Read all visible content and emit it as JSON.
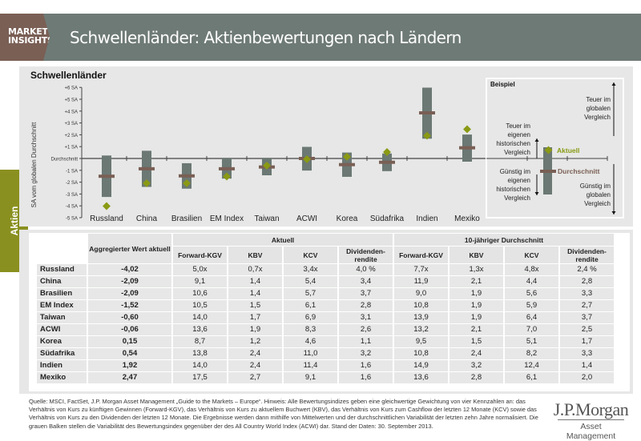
{
  "header": {
    "brand": [
      "MARKET",
      "INSIGHTS"
    ],
    "title": "Schwellenländer: Aktienbewertungen nach Ländern"
  },
  "sidetab": "Aktien",
  "colors": {
    "header": "#6e7a76",
    "brand": "#7a5f55",
    "side": "#8a901f",
    "bar": "#6b7874",
    "average": "#7a5f55",
    "current": "#8a9a14"
  },
  "chart_data": {
    "type": "range-bar",
    "title": "Schwellenländer",
    "ylabel": "SA vom globalen Durchschnitt",
    "ylim": [
      -5,
      6
    ],
    "yticks": [
      "+6 SA",
      "+5 SA",
      "+4 SA",
      "+3 SA",
      "+2 SA",
      "+1 SA",
      "Durchschnitt",
      "-1 SA",
      "-2 SA",
      "-3 SA",
      "-4 SA",
      "-5 SA"
    ],
    "categories": [
      "Russland",
      "China",
      "Brasilien",
      "EM Index",
      "Taiwan",
      "ACWI",
      "Korea",
      "Südafrika",
      "Indien",
      "Mexiko"
    ],
    "range_low": [
      -3.25,
      -2.4,
      -2.55,
      -1.7,
      -1.42,
      -1.02,
      -1.55,
      -1.07,
      1.67,
      -0.27
    ],
    "range_high": [
      0.25,
      0.65,
      -0.4,
      0,
      0,
      0.98,
      0.5,
      0.42,
      5.98,
      2.02
    ],
    "average": [
      -1.5,
      -0.87,
      -1.47,
      -0.87,
      -0.72,
      0,
      -0.52,
      -0.32,
      3.85,
      0.9
    ],
    "current": [
      -4.02,
      -2.09,
      -2.09,
      -1.52,
      -0.6,
      -0.06,
      0.15,
      0.54,
      1.92,
      2.47
    ],
    "grid": false,
    "legend": {
      "title": "Beispiel",
      "current": "Aktuell",
      "average": "Durchschnitt",
      "own_expensive": [
        "Teuer im",
        "eigenen",
        "historischen",
        "Vergleich"
      ],
      "own_cheap": [
        "Günstig im",
        "eigenen",
        "historischen",
        "Vergleich"
      ],
      "global_expensive": [
        "Teuer im",
        "globalen",
        "Vergleich"
      ],
      "global_cheap": [
        "Günstig im",
        "globalen",
        "Vergleich"
      ],
      "placement": "right"
    }
  },
  "table": {
    "group_headers": [
      "Aggregierter Wert aktuell",
      "Aktuell",
      "10-jähriger Durchschnitt"
    ],
    "columns": [
      "Forward-KGV",
      "KBV",
      "KCV",
      "Dividenden-rendite",
      "Forward-KGV",
      "KBV",
      "KCV",
      "Dividenden-rendite"
    ],
    "rows": [
      [
        "Russland",
        "-4,02",
        "5,0x",
        "0,7x",
        "3,4x",
        "4,0 %",
        "7,7x",
        "1,3x",
        "4,8x",
        "2,4 %"
      ],
      [
        "China",
        "-2,09",
        "9,1",
        "1,4",
        "5,4",
        "3,4",
        "11,9",
        "2,1",
        "4,4",
        "2,8"
      ],
      [
        "Brasilien",
        "-2,09",
        "10,6",
        "1,4",
        "5,7",
        "3,7",
        "9,0",
        "1,9",
        "5,6",
        "3,3"
      ],
      [
        "EM Index",
        "-1,52",
        "10,5",
        "1,5",
        "6,1",
        "2,8",
        "10,8",
        "1,9",
        "5,9",
        "2,7"
      ],
      [
        "Taiwan",
        "-0,60",
        "14,0",
        "1,7",
        "6,9",
        "3,1",
        "13,9",
        "1,9",
        "6,4",
        "3,7"
      ],
      [
        "ACWI",
        "-0,06",
        "13,6",
        "1,9",
        "8,3",
        "2,6",
        "13,2",
        "2,1",
        "7,0",
        "2,5"
      ],
      [
        "Korea",
        "0,15",
        "8,7",
        "1,2",
        "4,6",
        "1,1",
        "9,5",
        "1,5",
        "5,1",
        "1,7"
      ],
      [
        "Südafrika",
        "0,54",
        "13,8",
        "2,4",
        "11,0",
        "3,2",
        "10,8",
        "2,4",
        "8,2",
        "3,3"
      ],
      [
        "Indien",
        "1,92",
        "14,0",
        "2,4",
        "11,4",
        "1,6",
        "14,9",
        "3,2",
        "12,4",
        "1,4"
      ],
      [
        "Mexiko",
        "2,47",
        "17,5",
        "2,7",
        "9,1",
        "1,6",
        "13,6",
        "2,8",
        "6,1",
        "2,0"
      ]
    ]
  },
  "footer": "Quelle: MSCI, FactSet, J.P. Morgan Asset Management „Guide to the Markets – Europe“. Hinweis: Alle Bewertungsindizes geben eine gleichwertige Gewichtung von vier Kennzahlen an: das Verhältnis von Kurs zu künftigen Gewinnen (Forward-KGV), das Verhältnis von Kurs zu aktuellem Buchwert (KBV), das Verhältnis von Kurs zum Cashflow der letzten 12 Monate (KCV) sowie das Verhältnis von Kurs zu den Dividenden der letzten 12 Monate. Die Ergebnisse werden dann mithilfe von Mittelwerten und der durchschnittlichen Variabilität der letzten zehn Jahre normalisiert. Die grauen Balken stellen die Variabilität des Bewertungsindex gegenüber der des All Country World Index (ACWI) dar. Stand der Daten: 30. September 2013.",
  "logo": {
    "name": "J.P.Morgan",
    "sub": "Asset Management"
  }
}
